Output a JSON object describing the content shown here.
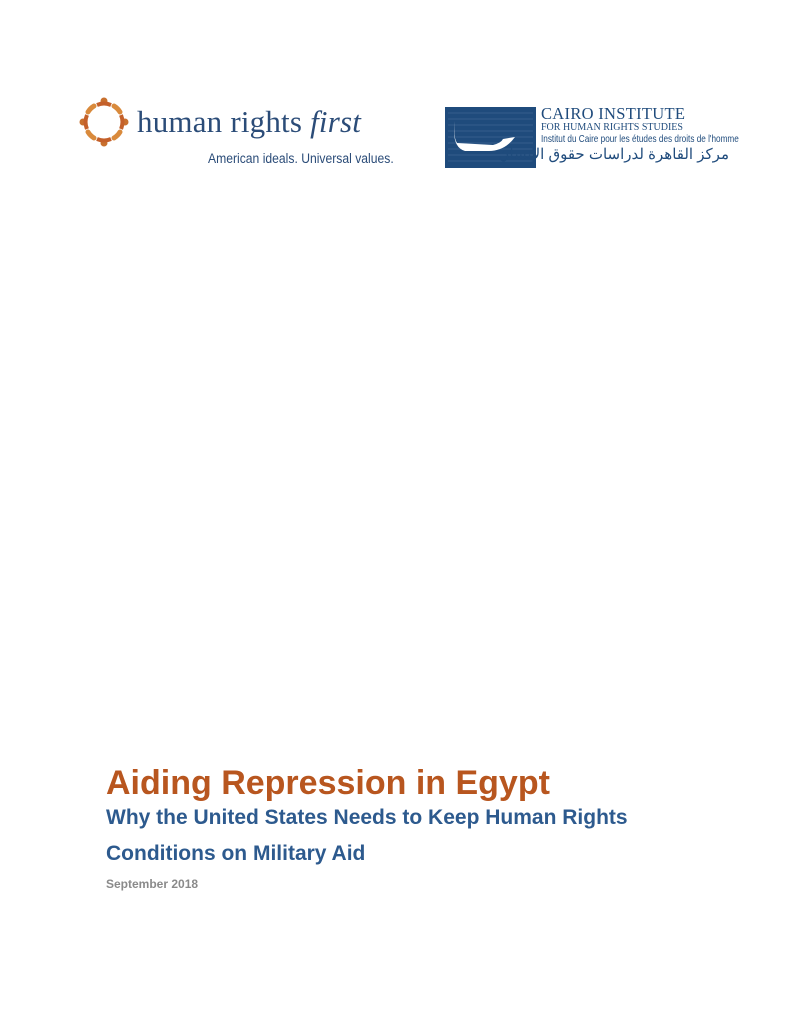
{
  "logos": {
    "hrf": {
      "name_main": "human rights ",
      "name_italic": "first",
      "tagline": "American ideals. Universal values.",
      "colors": {
        "ring": "#c8702e",
        "text": "#2b4c78"
      }
    },
    "cairo": {
      "line1": "CAIRO INSTITUTE",
      "line2": "FOR HUMAN RIGHTS STUDIES",
      "line3": "Institut du Caire pour les études des droits de l'homme",
      "line4": "مركز القاهرة لدراسات حقوق الإنسان",
      "color": "#1f4b7c"
    }
  },
  "document": {
    "title": "Aiding Repression in Egypt",
    "subtitle_line1": "Why the United States Needs to Keep Human Rights",
    "subtitle_line2": "Conditions on Military Aid",
    "date": "September 2018",
    "colors": {
      "title": "#b8561f",
      "subtitle": "#2d5a8e",
      "date": "#8a8a8a"
    }
  }
}
